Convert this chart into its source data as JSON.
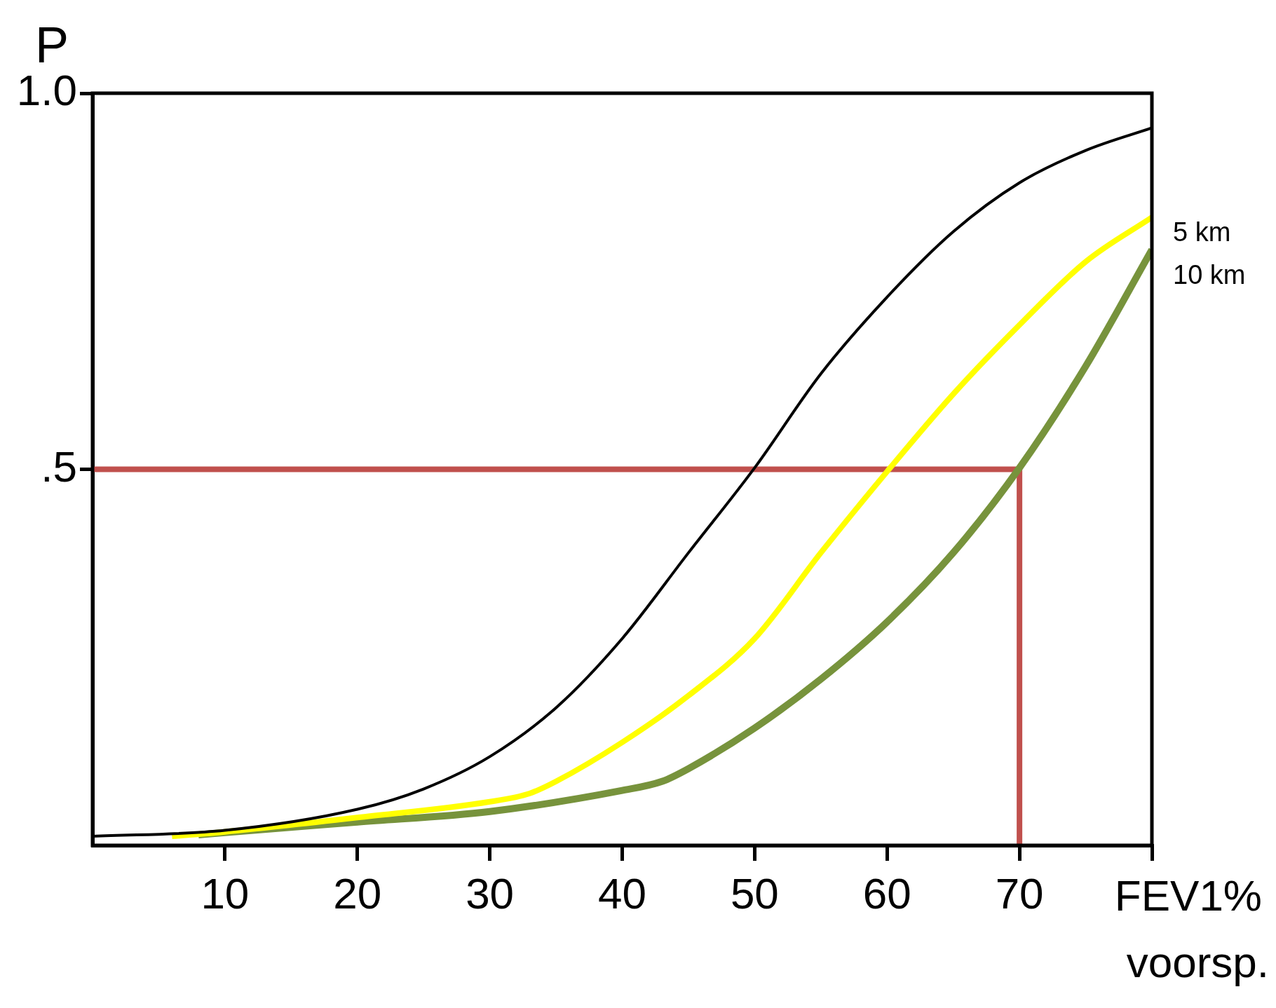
{
  "chart_data": {
    "type": "line",
    "ylabel": "P",
    "xlabel": "FEV1% voorsp.",
    "xlim": [
      0,
      80
    ],
    "ylim": [
      0,
      1
    ],
    "xticks": [
      10,
      20,
      30,
      40,
      50,
      60,
      70,
      {
        "value": 80,
        "label": null
      }
    ],
    "yticks": [
      {
        "value": 0.5,
        "label": ".5"
      },
      {
        "value": 1,
        "label": "1.0"
      }
    ],
    "grid": false,
    "legend": false,
    "marker": "none",
    "line_style": "solid",
    "series": [
      {
        "color": "#000000",
        "x": [
          0,
          10,
          20,
          25,
          30,
          35,
          40,
          45,
          50,
          55,
          60,
          65,
          70,
          75,
          80
        ],
        "values": [
          0.012,
          0.02,
          0.048,
          0.075,
          0.118,
          0.183,
          0.275,
          0.389,
          0.502,
          0.627,
          0.729,
          0.816,
          0.881,
          0.924,
          0.954
        ]
      },
      {
        "name": "5 km",
        "color": "#ffff00",
        "x": [
          6,
          10,
          20,
          30,
          33,
          35,
          40,
          45,
          50,
          55,
          60,
          65,
          70,
          75,
          80
        ],
        "values": [
          0.012,
          0.018,
          0.037,
          0.058,
          0.069,
          0.085,
          0.137,
          0.199,
          0.275,
          0.389,
          0.497,
          0.6,
          0.692,
          0.776,
          0.835
        ]
      },
      {
        "name": "10 km",
        "color": "#77933c",
        "x": [
          8,
          10,
          20,
          30,
          40,
          43,
          45,
          50,
          55,
          60,
          65,
          70,
          75,
          80
        ],
        "values": [
          0.014,
          0.017,
          0.031,
          0.045,
          0.073,
          0.085,
          0.102,
          0.156,
          0.221,
          0.297,
          0.389,
          0.502,
          0.637,
          0.792
        ]
      },
      {
        "color": "#c0504d",
        "x": [
          0,
          70,
          70
        ],
        "values": [
          0.5,
          0.5,
          0
        ]
      }
    ]
  }
}
